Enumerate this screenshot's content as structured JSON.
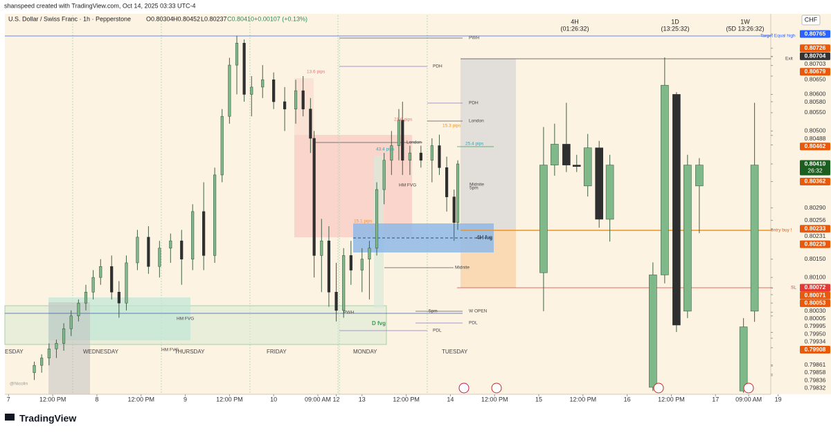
{
  "header": {
    "title": "shanspeed created with TradingView.com, Oct 14, 2025 03:33 UTC-4"
  },
  "legend": {
    "symbol": "U.S. Dollar / Swiss Franc · 1h · Pepperstone",
    "open": "O0.80304",
    "high": "H0.80452",
    "low": "L0.80237",
    "close": "C0.80410",
    "change": "+0.00107 (+0.13%)"
  },
  "currency": "CHF",
  "timeframes": [
    {
      "name": "4H",
      "countdown": "(01:26:32)"
    },
    {
      "name": "1D",
      "countdown": "(13:25:32)"
    },
    {
      "name": "1W",
      "countdown": "(5D 13:26:32)"
    }
  ],
  "annotations": {
    "pwh_top": "PWH",
    "pdh_1": "PDH",
    "pdh_2": "PDH",
    "london_1": "London",
    "london_2": "London",
    "pips_13_6": "13.6 pips",
    "pips_21_6": "21.6 pips",
    "pips_15_3": "15.3 pips",
    "pips_43_4": "43.4 pips",
    "pips_25_4": "25.4 pips",
    "pips_15_1": "15.1 pips",
    "midnite_1": "Midnite",
    "five_pm_1": "5pm",
    "midnite_2": "Midnite",
    "hm_fvg_1": "HM FVG",
    "hm_fvg_2": "HM FVG",
    "hm_fvg_3": "HM FVG",
    "fvg_4h": "4H fvg",
    "fvg_d": "D fvg",
    "pwh_low": "PWH",
    "five_pm_2": "5pm",
    "w_open": "W OPEN",
    "pdl_1": "PDL",
    "pdl_2": "PDL",
    "exit": "Exit",
    "target": "Target Equal high",
    "entry": "entry buy !",
    "sl": "SL",
    "author": "@Nicolin"
  },
  "day_labels": [
    "ESDAY",
    "WEDNESDAY",
    "THURSDAY",
    "FRIDAY",
    "MONDAY",
    "TUESDAY"
  ],
  "footer": {
    "brand": "TradingView"
  },
  "chart_data": {
    "type": "candlestick",
    "ylim": [
      0.79781,
      0.8082
    ],
    "xlim": [
      0,
      208
    ],
    "xticks": [
      {
        "value": 1,
        "label": "7"
      },
      {
        "value": 13,
        "label": "12:00 PM"
      },
      {
        "value": 25,
        "label": "8"
      },
      {
        "value": 37,
        "label": "12:00 PM"
      },
      {
        "value": 49,
        "label": "9"
      },
      {
        "value": 61,
        "label": "12:00 PM"
      },
      {
        "value": 73,
        "label": "10"
      },
      {
        "value": 85,
        "label": "09:00 AM"
      },
      {
        "value": 90,
        "label": "12"
      },
      {
        "value": 97,
        "label": "13"
      },
      {
        "value": 109,
        "label": "12:00 PM"
      },
      {
        "value": 121,
        "label": "14"
      },
      {
        "value": 133,
        "label": "12:00 PM"
      },
      {
        "value": 145,
        "label": "15"
      },
      {
        "value": 157,
        "label": "12:00 PM"
      },
      {
        "value": 169,
        "label": "16"
      },
      {
        "value": 181,
        "label": "12:00 PM"
      },
      {
        "value": 193,
        "label": "17"
      },
      {
        "value": 202,
        "label": "09:00 AM"
      },
      {
        "value": 210,
        "label": "19"
      }
    ],
    "up_color": "#7fb98a",
    "down_color": "#2f2f2f",
    "wick_color": "#3d5f45",
    "price_labels": [
      {
        "value": 0.80765,
        "label": "0.80765",
        "color": "#2962ff"
      },
      {
        "value": 0.80726,
        "label": "0.80726",
        "color": "#e8590c"
      },
      {
        "value": 0.80704,
        "label": "0.80704",
        "color": "#333333"
      },
      {
        "value": 0.80703,
        "label": "0.80703"
      },
      {
        "value": 0.80679,
        "label": "0.80679",
        "color": "#e8590c"
      },
      {
        "value": 0.8065,
        "label": "0.80650"
      },
      {
        "value": 0.806,
        "label": "0.80600"
      },
      {
        "value": 0.8058,
        "label": "0.80580"
      },
      {
        "value": 0.8055,
        "label": "0.80550"
      },
      {
        "value": 0.805,
        "label": "0.80500"
      },
      {
        "value": 0.80488,
        "label": "0.80488"
      },
      {
        "value": 0.80462,
        "label": "0.80462",
        "color": "#e8590c"
      },
      {
        "value": 0.8041,
        "label": "0.80410",
        "color": "#1b5e20",
        "countdown": "26:32"
      },
      {
        "value": 0.80362,
        "label": "0.80362",
        "color": "#e8590c"
      },
      {
        "value": 0.8029,
        "label": "0.80290"
      },
      {
        "value": 0.80256,
        "label": "0.80256"
      },
      {
        "value": 0.80233,
        "label": "0.80233",
        "color": "#e8590c"
      },
      {
        "value": 0.80231,
        "label": "0.80231"
      },
      {
        "value": 0.80229,
        "label": "0.80229",
        "color": "#e8590c"
      },
      {
        "value": 0.8015,
        "label": "0.80150"
      },
      {
        "value": 0.801,
        "label": "0.80100"
      },
      {
        "value": 0.80072,
        "label": "0.80072",
        "color": "#e53935"
      },
      {
        "value": 0.80071,
        "label": "0.80071",
        "color": "#e8590c"
      },
      {
        "value": 0.80053,
        "label": "0.80053",
        "color": "#e8590c"
      },
      {
        "value": 0.8003,
        "label": "0.80030"
      },
      {
        "value": 0.80005,
        "label": "0.80005"
      },
      {
        "value": 0.79995,
        "label": "0.79995"
      },
      {
        "value": 0.7995,
        "label": "0.79950"
      },
      {
        "value": 0.79934,
        "label": "0.79934"
      },
      {
        "value": 0.79908,
        "label": "0.79908",
        "color": "#e8590c"
      },
      {
        "value": 0.79861,
        "label": "0.79861"
      },
      {
        "value": 0.79858,
        "label": "0.79858"
      },
      {
        "value": 0.79836,
        "label": "0.79836"
      },
      {
        "value": 0.79832,
        "label": "0.79832"
      }
    ],
    "hourly_candles": [
      {
        "x": 8,
        "o": 0.7984,
        "h": 0.7987,
        "l": 0.7982,
        "c": 0.7986
      },
      {
        "x": 10,
        "o": 0.7986,
        "h": 0.7989,
        "l": 0.7984,
        "c": 0.7988
      },
      {
        "x": 12,
        "o": 0.7988,
        "h": 0.7992,
        "l": 0.7986,
        "c": 0.79905
      },
      {
        "x": 14,
        "o": 0.79905,
        "h": 0.7993,
        "l": 0.7988,
        "c": 0.7992
      },
      {
        "x": 16,
        "o": 0.7992,
        "h": 0.79975,
        "l": 0.799,
        "c": 0.7996
      },
      {
        "x": 18,
        "o": 0.7996,
        "h": 0.8001,
        "l": 0.7994,
        "c": 0.79995
      },
      {
        "x": 20,
        "o": 0.79995,
        "h": 0.8004,
        "l": 0.7998,
        "c": 0.8003
      },
      {
        "x": 22,
        "o": 0.8003,
        "h": 0.8008,
        "l": 0.8001,
        "c": 0.8006
      },
      {
        "x": 24,
        "o": 0.8006,
        "h": 0.8012,
        "l": 0.8004,
        "c": 0.801
      },
      {
        "x": 26,
        "o": 0.801,
        "h": 0.8015,
        "l": 0.8008,
        "c": 0.8013
      },
      {
        "x": 29,
        "o": 0.8013,
        "h": 0.8016,
        "l": 0.8004,
        "c": 0.8006
      },
      {
        "x": 31,
        "o": 0.8006,
        "h": 0.8009,
        "l": 0.7999,
        "c": 0.8003
      },
      {
        "x": 33,
        "o": 0.8003,
        "h": 0.8016,
        "l": 0.8001,
        "c": 0.8014
      },
      {
        "x": 36,
        "o": 0.8014,
        "h": 0.8023,
        "l": 0.8012,
        "c": 0.8021
      },
      {
        "x": 39,
        "o": 0.8021,
        "h": 0.8024,
        "l": 0.8011,
        "c": 0.8013
      },
      {
        "x": 42,
        "o": 0.8013,
        "h": 0.802,
        "l": 0.801,
        "c": 0.8018
      },
      {
        "x": 45,
        "o": 0.8018,
        "h": 0.8022,
        "l": 0.8014,
        "c": 0.802
      },
      {
        "x": 48,
        "o": 0.802,
        "h": 0.8023,
        "l": 0.8008,
        "c": 0.8015
      },
      {
        "x": 51,
        "o": 0.8015,
        "h": 0.803,
        "l": 0.8012,
        "c": 0.8028
      },
      {
        "x": 54,
        "o": 0.8028,
        "h": 0.8036,
        "l": 0.8012,
        "c": 0.8016
      },
      {
        "x": 57,
        "o": 0.8016,
        "h": 0.804,
        "l": 0.8014,
        "c": 0.8038
      },
      {
        "x": 59,
        "o": 0.8038,
        "h": 0.8056,
        "l": 0.8036,
        "c": 0.8054
      },
      {
        "x": 61,
        "o": 0.8054,
        "h": 0.807,
        "l": 0.8052,
        "c": 0.8068
      },
      {
        "x": 63,
        "o": 0.8068,
        "h": 0.8076,
        "l": 0.806,
        "c": 0.8074
      },
      {
        "x": 65,
        "o": 0.8074,
        "h": 0.8075,
        "l": 0.8058,
        "c": 0.806
      },
      {
        "x": 67,
        "o": 0.806,
        "h": 0.8065,
        "l": 0.8054,
        "c": 0.8062
      },
      {
        "x": 70,
        "o": 0.8062,
        "h": 0.8068,
        "l": 0.8059,
        "c": 0.8064
      },
      {
        "x": 73,
        "o": 0.8064,
        "h": 0.8066,
        "l": 0.8056,
        "c": 0.8058
      },
      {
        "x": 76,
        "o": 0.8058,
        "h": 0.8062,
        "l": 0.805,
        "c": 0.8056
      },
      {
        "x": 79,
        "o": 0.8056,
        "h": 0.8064,
        "l": 0.8052,
        "c": 0.8061
      },
      {
        "x": 81,
        "o": 0.8061,
        "h": 0.8065,
        "l": 0.8054,
        "c": 0.8056
      },
      {
        "x": 83,
        "o": 0.8056,
        "h": 0.8059,
        "l": 0.8044,
        "c": 0.8048
      },
      {
        "x": 84,
        "o": 0.8048,
        "h": 0.805,
        "l": 0.801,
        "c": 0.8016
      },
      {
        "x": 86,
        "o": 0.8016,
        "h": 0.8026,
        "l": 0.8006,
        "c": 0.802
      },
      {
        "x": 88,
        "o": 0.802,
        "h": 0.8024,
        "l": 0.8002,
        "c": 0.8006
      },
      {
        "x": 90,
        "o": 0.8006,
        "h": 0.8014,
        "l": 0.7998,
        "c": 0.8001
      },
      {
        "x": 92,
        "o": 0.8001,
        "h": 0.8018,
        "l": 0.7999,
        "c": 0.8016
      },
      {
        "x": 94,
        "o": 0.8016,
        "h": 0.802,
        "l": 0.8008,
        "c": 0.8012
      },
      {
        "x": 97,
        "o": 0.8012,
        "h": 0.8018,
        "l": 0.8006,
        "c": 0.8015
      },
      {
        "x": 99,
        "o": 0.8015,
        "h": 0.802,
        "l": 0.8004,
        "c": 0.8018
      },
      {
        "x": 101,
        "o": 0.8018,
        "h": 0.8036,
        "l": 0.8016,
        "c": 0.8034
      },
      {
        "x": 103,
        "o": 0.8034,
        "h": 0.8044,
        "l": 0.803,
        "c": 0.8042
      },
      {
        "x": 105,
        "o": 0.8042,
        "h": 0.805,
        "l": 0.8038,
        "c": 0.8046
      },
      {
        "x": 107,
        "o": 0.8046,
        "h": 0.8056,
        "l": 0.8042,
        "c": 0.8053
      },
      {
        "x": 108,
        "o": 0.8053,
        "h": 0.8058,
        "l": 0.8038,
        "c": 0.8042
      },
      {
        "x": 110,
        "o": 0.8042,
        "h": 0.8046,
        "l": 0.8038,
        "c": 0.8044
      },
      {
        "x": 113,
        "o": 0.8044,
        "h": 0.8046,
        "l": 0.804,
        "c": 0.8042
      },
      {
        "x": 116,
        "o": 0.8042,
        "h": 0.8048,
        "l": 0.8036,
        "c": 0.8046
      },
      {
        "x": 118,
        "o": 0.8046,
        "h": 0.8049,
        "l": 0.8038,
        "c": 0.804
      },
      {
        "x": 120,
        "o": 0.804,
        "h": 0.8043,
        "l": 0.8028,
        "c": 0.8032
      },
      {
        "x": 122,
        "o": 0.8032,
        "h": 0.8034,
        "l": 0.802,
        "c": 0.8025
      },
      {
        "x": 123,
        "o": 0.8025,
        "h": 0.8042,
        "l": 0.8023,
        "c": 0.8041
      }
    ],
    "htf_candles": [
      {
        "x": 146.3,
        "o": 0.80113,
        "h": 0.80511,
        "l": 0.80008,
        "c": 0.80407
      },
      {
        "x": 149.3,
        "o": 0.80407,
        "h": 0.8052,
        "l": 0.80378,
        "c": 0.80464
      },
      {
        "x": 152.5,
        "o": 0.80464,
        "h": 0.80577,
        "l": 0.80388,
        "c": 0.80407
      },
      {
        "x": 155.3,
        "o": 0.80407,
        "h": 0.80435,
        "l": 0.80388,
        "c": 0.80403
      },
      {
        "x": 158.3,
        "o": 0.8035,
        "h": 0.80492,
        "l": 0.80321,
        "c": 0.80454
      },
      {
        "x": 161.4,
        "o": 0.80454,
        "h": 0.80473,
        "l": 0.80236,
        "c": 0.80259
      },
      {
        "x": 164.3,
        "o": 0.80259,
        "h": 0.80435,
        "l": 0.80198,
        "c": 0.80407
      },
      {
        "x": 176,
        "o": 0.798,
        "h": 0.80141,
        "l": 0.7979,
        "c": 0.80107
      },
      {
        "x": 179.2,
        "o": 0.80107,
        "h": 0.80701,
        "l": 0.80084,
        "c": 0.80625
      },
      {
        "x": 182.4,
        "o": 0.806,
        "h": 0.80606,
        "l": 0.79951,
        "c": 0.7997
      },
      {
        "x": 185.4,
        "o": 0.80008,
        "h": 0.80435,
        "l": 0.79989,
        "c": 0.80407
      },
      {
        "x": 188.6,
        "o": 0.8035,
        "h": 0.80426,
        "l": 0.80221,
        "c": 0.80407
      },
      {
        "x": 200.6,
        "o": 0.7979,
        "h": 0.79989,
        "l": 0.79785,
        "c": 0.79965
      },
      {
        "x": 203.6,
        "o": 0.80008,
        "h": 0.80577,
        "l": 0.79979,
        "c": 0.80407
      }
    ]
  }
}
